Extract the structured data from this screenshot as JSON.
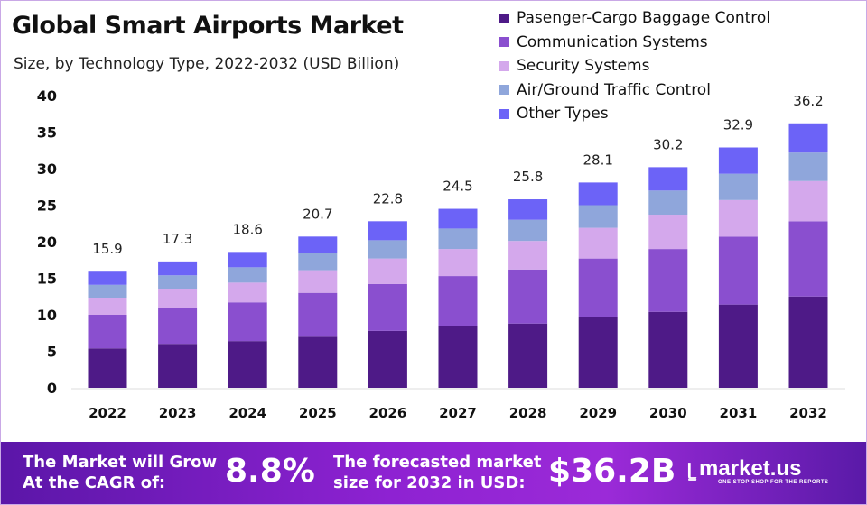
{
  "chart_data": {
    "type": "bar",
    "stacked": true,
    "title": "Global Smart Airports Market",
    "subtitle": "Size, by Technology Type, 2022-2032 (USD Billion)",
    "categories": [
      "2022",
      "2023",
      "2024",
      "2025",
      "2026",
      "2027",
      "2028",
      "2029",
      "2030",
      "2031",
      "2032"
    ],
    "totals": [
      "15.9",
      "17.3",
      "18.6",
      "20.7",
      "22.8",
      "24.5",
      "25.8",
      "28.1",
      "30.2",
      "32.9",
      "36.2"
    ],
    "series": [
      {
        "name": "Pasenger-Cargo Baggage Control",
        "color": "#4e1a87",
        "values": [
          5.4,
          5.9,
          6.4,
          7.0,
          7.8,
          8.4,
          8.8,
          9.7,
          10.4,
          11.4,
          12.5
        ]
      },
      {
        "name": "Communication Systems",
        "color": "#8a4fcf",
        "values": [
          4.6,
          5.0,
          5.3,
          6.0,
          6.4,
          6.9,
          7.4,
          8.0,
          8.6,
          9.3,
          10.3
        ]
      },
      {
        "name": "Security Systems",
        "color": "#d4a8ec",
        "values": [
          2.3,
          2.6,
          2.7,
          3.1,
          3.5,
          3.7,
          3.9,
          4.2,
          4.7,
          5.0,
          5.5
        ]
      },
      {
        "name": "Air/Ground Traffic Control",
        "color": "#8fa6db",
        "values": [
          1.8,
          1.9,
          2.1,
          2.3,
          2.5,
          2.8,
          2.9,
          3.1,
          3.3,
          3.6,
          3.9
        ]
      },
      {
        "name": "Other Types",
        "color": "#6c63f7",
        "values": [
          1.8,
          1.9,
          2.1,
          2.3,
          2.6,
          2.7,
          2.8,
          3.1,
          3.2,
          3.6,
          4.0
        ]
      }
    ],
    "yticks": [
      "0",
      "5",
      "10",
      "15",
      "20",
      "25",
      "30",
      "35",
      "40"
    ],
    "ylim": [
      0,
      40
    ],
    "grid": false,
    "legend": "top-right"
  },
  "banner": {
    "cagr_text": [
      "The Market will Grow",
      "At the CAGR of:"
    ],
    "cagr_value": "8.8%",
    "forecast_text": [
      "The forecasted market",
      "size for 2032 in USD:"
    ],
    "forecast_value": "$36.2B",
    "logo": "market.us",
    "logo_tagline": "ONE STOP SHOP FOR THE REPORTS"
  }
}
